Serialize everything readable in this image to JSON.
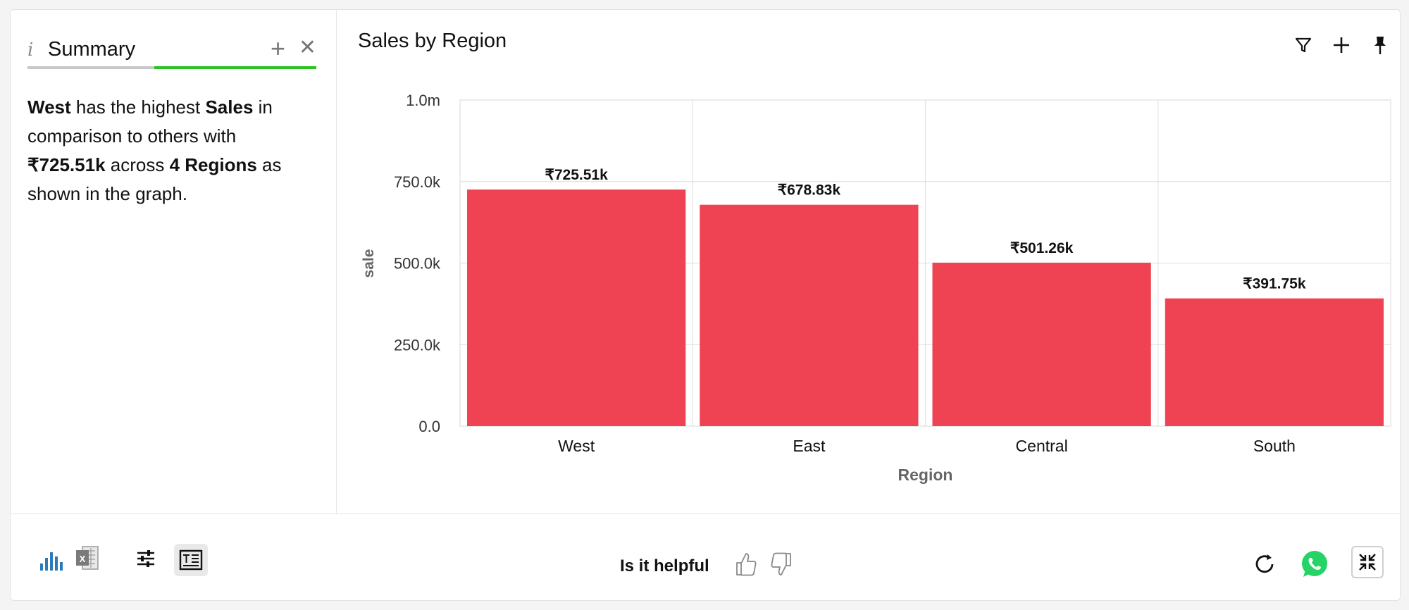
{
  "summary": {
    "icon": "info-icon",
    "info_glyph": "i",
    "title": "Summary",
    "text_parts": [
      "West",
      " has the highest ",
      "Sales",
      " in comparison to others with ",
      "₹725.51k",
      " across ",
      "4 Regions",
      " as shown in the graph."
    ]
  },
  "chart_panel": {
    "title": "Sales by Region"
  },
  "chart_data": {
    "type": "bar",
    "title": "Sales by Region",
    "xlabel": "Region",
    "ylabel": "sale",
    "categories": [
      "West",
      "East",
      "Central",
      "South"
    ],
    "values": [
      725.51,
      678.83,
      501.26,
      391.75
    ],
    "value_unit": "thousands (₹)",
    "data_labels": [
      "₹725.51k",
      "₹678.83k",
      "₹501.26k",
      "₹391.75k"
    ],
    "ylim": [
      0,
      1000
    ],
    "yticks": [
      0,
      250,
      500,
      750,
      1000
    ],
    "ytick_labels": [
      "0.0",
      "250.0k",
      "500.0k",
      "750.0k",
      "1.0m"
    ],
    "bar_color": "#ef4252",
    "grid": true
  },
  "footer": {
    "helpful_label": "Is it helpful"
  },
  "colors": {
    "accent": "#2dc326",
    "bar": "#ef4252",
    "whatsapp": "#25d366",
    "chart_icon": "#2b7bb9"
  }
}
